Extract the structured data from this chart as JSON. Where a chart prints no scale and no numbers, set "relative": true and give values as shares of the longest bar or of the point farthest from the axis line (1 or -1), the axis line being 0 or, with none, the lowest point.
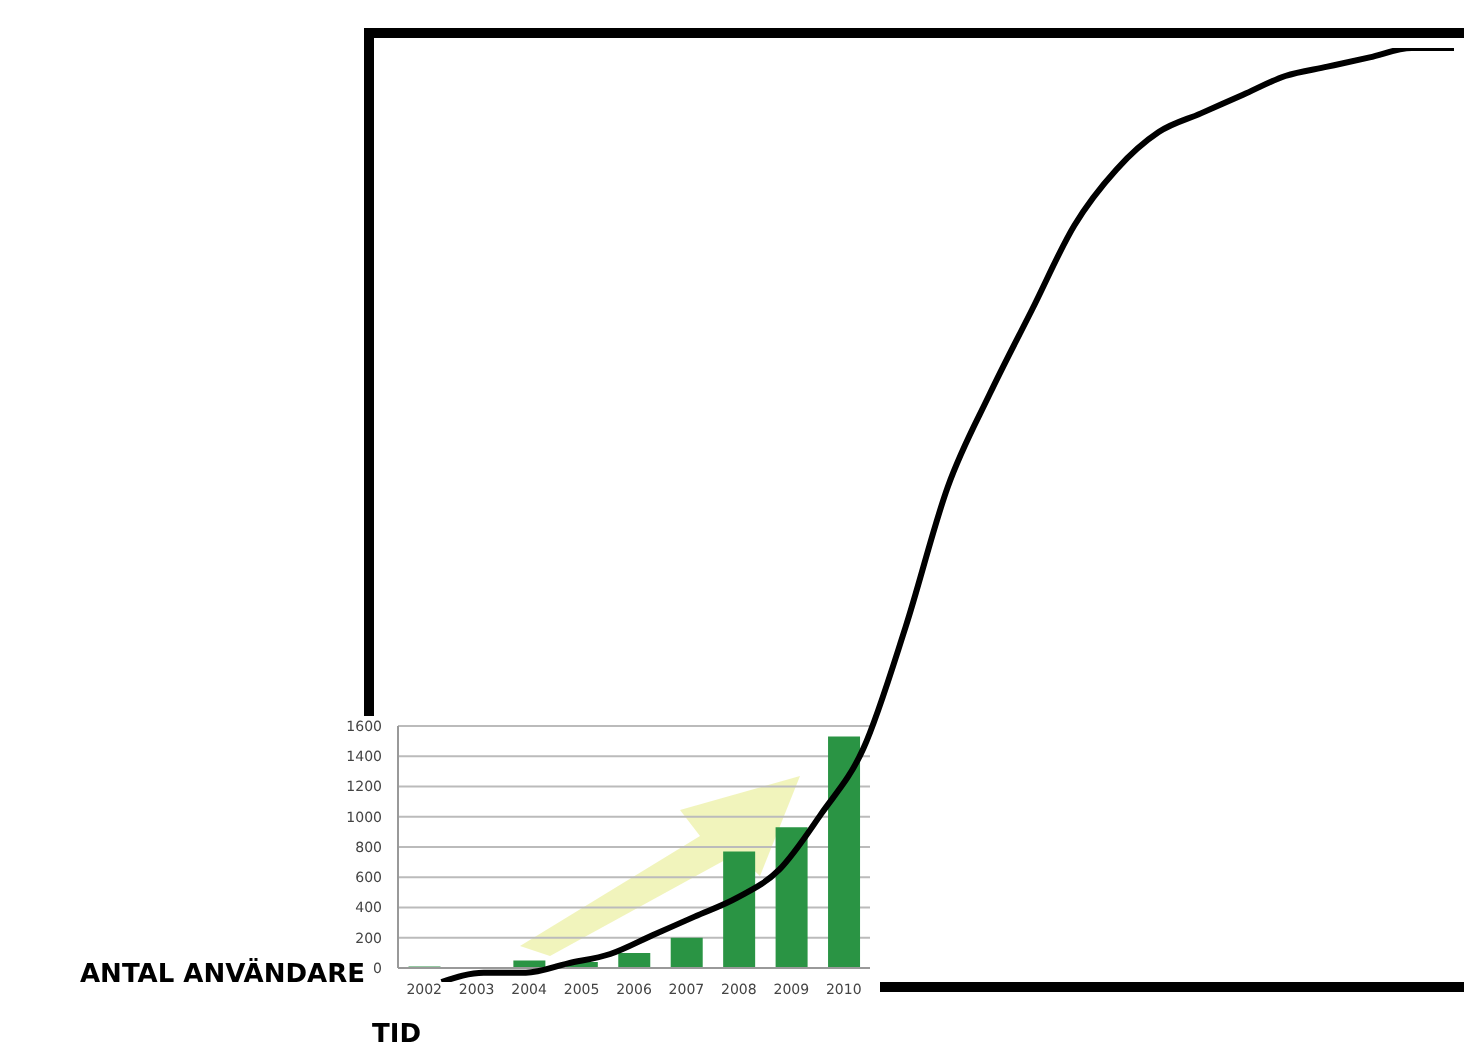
{
  "chart_data": [
    {
      "type": "line",
      "xlabel": "TID",
      "ylabel": "ANTAL ANVÄNDARE",
      "relative": true,
      "categories": [
        null,
        null,
        null,
        null,
        null,
        null,
        null,
        null,
        null,
        null,
        null,
        null,
        null,
        null,
        null,
        null,
        null,
        null,
        null,
        null,
        null,
        null,
        null,
        null,
        null
      ],
      "values": [
        0,
        0.01,
        0.01,
        0.02,
        0.03,
        0.05,
        0.07,
        0.09,
        0.12,
        0.18,
        0.25,
        0.38,
        0.53,
        0.63,
        0.72,
        0.81,
        0.87,
        0.91,
        0.93,
        0.95,
        0.97,
        0.98,
        0.99,
        1.0,
        1.0
      ],
      "color": "#000000"
    },
    {
      "type": "bar",
      "categories": [
        "2002",
        "2003",
        "2004",
        "2005",
        "2006",
        "2007",
        "2008",
        "2009",
        "2010"
      ],
      "values": [
        10,
        0,
        50,
        40,
        100,
        200,
        770,
        930,
        1530
      ],
      "color": "#2a9444",
      "ylim": [
        0,
        1600
      ],
      "yticks": [
        0,
        200,
        400,
        600,
        800,
        1000,
        1200,
        1400,
        1600
      ],
      "grid": "y"
    }
  ]
}
